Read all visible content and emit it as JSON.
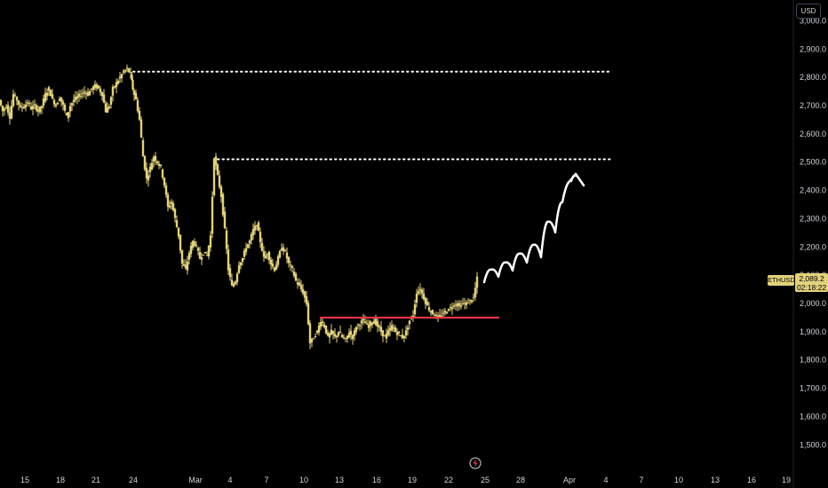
{
  "currency": "USD",
  "symbol": "ETHUSD",
  "last_price": "2,089.2",
  "countdown": "02:18:22",
  "icons": [
    "lightning-replay-icon"
  ],
  "colors": {
    "background": "#000000",
    "candle": "#e3d27a",
    "support_line": "#f23645",
    "resistance_line": "#ffffff",
    "arrow": "#ffffff"
  },
  "chart_data": {
    "type": "candlestick",
    "title": "",
    "xlabel": "",
    "ylabel": "",
    "ylim": [
      1400,
      3100
    ],
    "y_ticks": [
      "3,000.0",
      "2,900.0",
      "2,800.0",
      "2,700.0",
      "2,600.0",
      "2,500.0",
      "2,400.0",
      "2,300.0",
      "2,200.0",
      "2,100.0",
      "2,000.0",
      "1,900.0",
      "1,800.0",
      "1,700.0",
      "1,600.0",
      "1,500.0"
    ],
    "x_ticks": [
      "15",
      "18",
      "21",
      "24",
      "Mar",
      "4",
      "7",
      "10",
      "13",
      "16",
      "19",
      "22",
      "25",
      "28",
      "Apr",
      "4",
      "7",
      "10",
      "13",
      "16",
      "19"
    ],
    "grid": false,
    "close_path": [
      [
        0,
        2720
      ],
      [
        4,
        2680
      ],
      [
        8,
        2700
      ],
      [
        12,
        2660
      ],
      [
        16,
        2740
      ],
      [
        20,
        2720
      ],
      [
        24,
        2690
      ],
      [
        28,
        2700
      ],
      [
        32,
        2710
      ],
      [
        36,
        2690
      ],
      [
        40,
        2700
      ],
      [
        44,
        2680
      ],
      [
        48,
        2700
      ],
      [
        52,
        2740
      ],
      [
        56,
        2760
      ],
      [
        60,
        2720
      ],
      [
        64,
        2700
      ],
      [
        68,
        2730
      ],
      [
        72,
        2700
      ],
      [
        76,
        2660
      ],
      [
        80,
        2700
      ],
      [
        84,
        2720
      ],
      [
        88,
        2730
      ],
      [
        92,
        2740
      ],
      [
        96,
        2750
      ],
      [
        100,
        2740
      ],
      [
        104,
        2760
      ],
      [
        108,
        2770
      ],
      [
        112,
        2760
      ],
      [
        116,
        2740
      ],
      [
        120,
        2680
      ],
      [
        124,
        2700
      ],
      [
        128,
        2760
      ],
      [
        132,
        2780
      ],
      [
        136,
        2800
      ],
      [
        140,
        2820
      ],
      [
        144,
        2830
      ],
      [
        148,
        2810
      ],
      [
        150,
        2760
      ],
      [
        154,
        2720
      ],
      [
        158,
        2650
      ],
      [
        162,
        2520
      ],
      [
        166,
        2440
      ],
      [
        170,
        2480
      ],
      [
        174,
        2520
      ],
      [
        178,
        2500
      ],
      [
        182,
        2480
      ],
      [
        186,
        2420
      ],
      [
        190,
        2340
      ],
      [
        194,
        2360
      ],
      [
        198,
        2300
      ],
      [
        202,
        2240
      ],
      [
        206,
        2140
      ],
      [
        210,
        2120
      ],
      [
        214,
        2180
      ],
      [
        218,
        2220
      ],
      [
        222,
        2200
      ],
      [
        226,
        2160
      ],
      [
        230,
        2180
      ],
      [
        234,
        2170
      ],
      [
        238,
        2240
      ],
      [
        242,
        2520
      ],
      [
        246,
        2450
      ],
      [
        250,
        2380
      ],
      [
        254,
        2260
      ],
      [
        258,
        2120
      ],
      [
        262,
        2060
      ],
      [
        266,
        2080
      ],
      [
        270,
        2140
      ],
      [
        274,
        2160
      ],
      [
        278,
        2200
      ],
      [
        282,
        2220
      ],
      [
        286,
        2260
      ],
      [
        290,
        2280
      ],
      [
        294,
        2220
      ],
      [
        298,
        2160
      ],
      [
        302,
        2180
      ],
      [
        306,
        2140
      ],
      [
        310,
        2120
      ],
      [
        314,
        2160
      ],
      [
        318,
        2200
      ],
      [
        322,
        2180
      ],
      [
        326,
        2140
      ],
      [
        330,
        2120
      ],
      [
        334,
        2080
      ],
      [
        338,
        2060
      ],
      [
        342,
        2040
      ],
      [
        346,
        2000
      ],
      [
        350,
        1860
      ],
      [
        354,
        1880
      ],
      [
        358,
        1900
      ],
      [
        362,
        1940
      ],
      [
        366,
        1920
      ],
      [
        370,
        1880
      ],
      [
        374,
        1900
      ],
      [
        378,
        1880
      ],
      [
        382,
        1900
      ],
      [
        386,
        1880
      ],
      [
        390,
        1870
      ],
      [
        394,
        1900
      ],
      [
        398,
        1880
      ],
      [
        402,
        1920
      ],
      [
        406,
        1930
      ],
      [
        410,
        1940
      ],
      [
        414,
        1920
      ],
      [
        418,
        1930
      ],
      [
        422,
        1940
      ],
      [
        426,
        1920
      ],
      [
        430,
        1900
      ],
      [
        434,
        1880
      ],
      [
        438,
        1900
      ],
      [
        442,
        1920
      ],
      [
        446,
        1900
      ],
      [
        450,
        1890
      ],
      [
        454,
        1880
      ],
      [
        458,
        1900
      ],
      [
        462,
        1940
      ],
      [
        466,
        1960
      ],
      [
        470,
        2040
      ],
      [
        474,
        2050
      ],
      [
        478,
        2020
      ],
      [
        482,
        1990
      ],
      [
        486,
        1970
      ],
      [
        490,
        1960
      ],
      [
        494,
        1950
      ],
      [
        498,
        1960
      ],
      [
        502,
        1970
      ],
      [
        506,
        1980
      ],
      [
        510,
        1990
      ],
      [
        514,
        2000
      ],
      [
        518,
        1990
      ],
      [
        522,
        2000
      ],
      [
        526,
        2000
      ],
      [
        530,
        2010
      ],
      [
        534,
        2020
      ],
      [
        538,
        2089
      ]
    ],
    "levels": [
      {
        "kind": "dotted",
        "price": 2820,
        "x_start": 150,
        "x_end": 688
      },
      {
        "kind": "dotted",
        "price": 2510,
        "x_start": 245,
        "x_end": 688
      },
      {
        "kind": "support",
        "price": 1950,
        "x_start": 360,
        "x_end": 562
      }
    ],
    "projection": [
      [
        545,
        318
      ],
      [
        553,
        304
      ],
      [
        561,
        312
      ],
      [
        569,
        296
      ],
      [
        577,
        305
      ],
      [
        585,
        286
      ],
      [
        593,
        296
      ],
      [
        601,
        276
      ],
      [
        609,
        290
      ],
      [
        617,
        250
      ],
      [
        625,
        262
      ],
      [
        633,
        228
      ],
      [
        643,
        204
      ],
      [
        648,
        198
      ]
    ]
  }
}
